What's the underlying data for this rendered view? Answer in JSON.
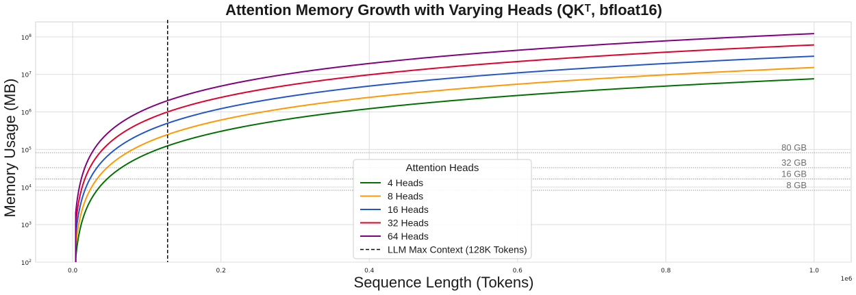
{
  "chart_data": {
    "type": "line",
    "title": "Attention Memory Growth with Varying Heads (QKᵀ, bfloat16)",
    "xlabel": "Sequence Length (Tokens)",
    "ylabel": "Memory Usage (MB)",
    "x_scale": "linear",
    "x_offset_label": "1e6",
    "y_scale": "log",
    "xlim": [
      -50000,
      1050000
    ],
    "ylim": [
      100,
      250000000
    ],
    "x_ticks": [
      {
        "value": 0,
        "label": "0.0"
      },
      {
        "value": 200000,
        "label": "0.2"
      },
      {
        "value": 400000,
        "label": "0.4"
      },
      {
        "value": 600000,
        "label": "0.6"
      },
      {
        "value": 800000,
        "label": "0.8"
      },
      {
        "value": 1000000,
        "label": "1.0"
      }
    ],
    "y_ticks": [
      {
        "value": 100,
        "base": "10",
        "exp": "2"
      },
      {
        "value": 1000,
        "base": "10",
        "exp": "3"
      },
      {
        "value": 10000,
        "base": "10",
        "exp": "4"
      },
      {
        "value": 100000,
        "base": "10",
        "exp": "5"
      },
      {
        "value": 1000000,
        "base": "10",
        "exp": "6"
      },
      {
        "value": 10000000,
        "base": "10",
        "exp": "7"
      },
      {
        "value": 100000000,
        "base": "10",
        "exp": "8"
      }
    ],
    "grid": true,
    "legend": {
      "title": "Attention Heads",
      "position": "lower-center"
    },
    "series": [
      {
        "name": "4 Heads",
        "color": "#007000",
        "heads": 4,
        "x_range": [
          4096,
          1000000
        ],
        "y_at_x_max": 7630000
      },
      {
        "name": "8 Heads",
        "color": "#ff9900",
        "heads": 8,
        "x_range": [
          4096,
          1000000
        ],
        "y_at_x_max": 15260000
      },
      {
        "name": "16 Heads",
        "color": "#2255cc",
        "heads": 16,
        "x_range": [
          4096,
          1000000
        ],
        "y_at_x_max": 30520000
      },
      {
        "name": "32 Heads",
        "color": "#e0002a",
        "heads": 32,
        "x_range": [
          4096,
          1000000
        ],
        "y_at_x_max": 61040000
      },
      {
        "name": "64 Heads",
        "color": "#800080",
        "heads": 64,
        "x_range": [
          4096,
          1000000
        ],
        "y_at_x_max": 122070000
      }
    ],
    "vertical_line": {
      "x": 128000,
      "label": "LLM Max Context (128K Tokens)",
      "color": "#000000",
      "style": "dashed"
    },
    "reference_lines": [
      {
        "y": 81920,
        "label": "80 GB"
      },
      {
        "y": 32768,
        "label": "32 GB"
      },
      {
        "y": 16384,
        "label": "16 GB"
      },
      {
        "y": 8192,
        "label": "8 GB"
      }
    ]
  }
}
